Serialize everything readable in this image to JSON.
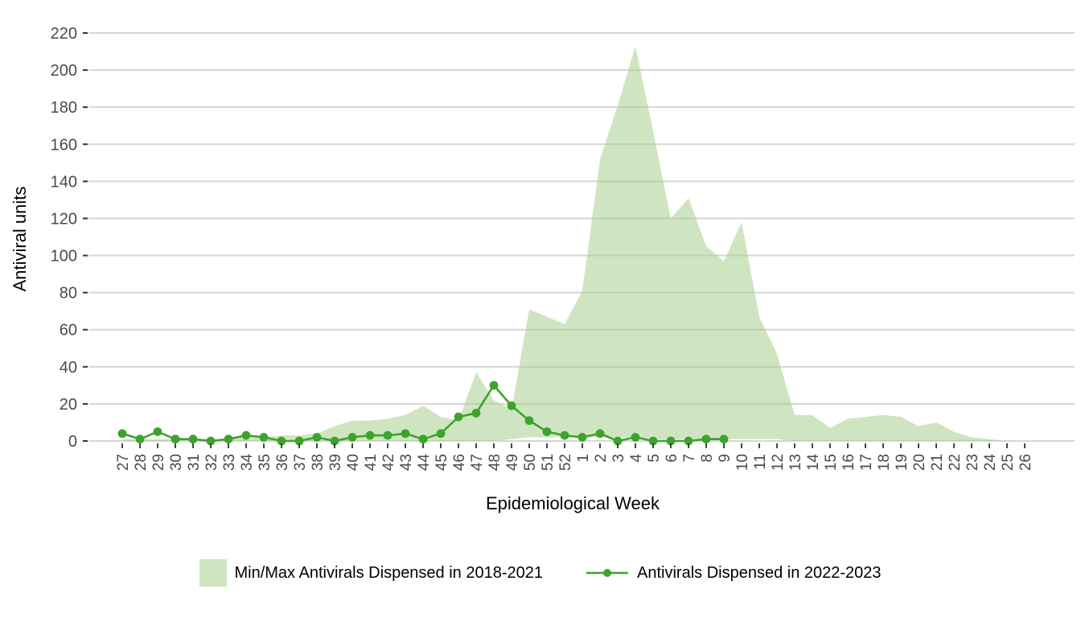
{
  "figure": {
    "y_axis_title": "Antiviral units",
    "x_axis_title": "Epidemiological Week"
  },
  "legend": {
    "items": [
      {
        "label": "Min/Max Antivirals Dispensed in 2018-2021",
        "type": "band-swatch"
      },
      {
        "label": "Antivirals Dispensed in 2022-2023",
        "type": "line-marker"
      }
    ]
  },
  "colors": {
    "band_fill_flat": "#cfe5c1",
    "band_fill_base": "#a8d08e",
    "band_fill_opacity": 0.55,
    "line_green": "#3ca42c",
    "grid": "#d6d6d6",
    "tick_mark": "#333333",
    "tick_label": "#4a4a4a"
  },
  "chart_data": {
    "type": "area",
    "title": "",
    "xlabel": "Epidemiological Week",
    "ylabel": "Antiviral units",
    "ylim": [
      0,
      220
    ],
    "y_ticks": [
      0,
      20,
      40,
      60,
      80,
      100,
      120,
      140,
      160,
      180,
      200,
      220
    ],
    "grid": "horizontal-only",
    "legend_position": "bottom",
    "categories": [
      "27",
      "28",
      "29",
      "30",
      "31",
      "32",
      "33",
      "34",
      "35",
      "36",
      "37",
      "38",
      "39",
      "40",
      "41",
      "42",
      "43",
      "44",
      "45",
      "46",
      "47",
      "48",
      "49",
      "50",
      "51",
      "52",
      "1",
      "2",
      "3",
      "4",
      "5",
      "6",
      "7",
      "8",
      "9",
      "10",
      "11",
      "12",
      "13",
      "14",
      "15",
      "16",
      "17",
      "18",
      "19",
      "20",
      "21",
      "22",
      "23",
      "24",
      "25",
      "26"
    ],
    "series": [
      {
        "name": "Min/Max Antivirals Dispensed in 2018-2021",
        "type": "band",
        "max": [
          1,
          1,
          1,
          1,
          1,
          1,
          1,
          2,
          2,
          3,
          3,
          4,
          8,
          11,
          11,
          12,
          14,
          19,
          13,
          11,
          37,
          22,
          17,
          71,
          67,
          63,
          81,
          152,
          181,
          213,
          167,
          120,
          131,
          105,
          97,
          118,
          67,
          47,
          14,
          14,
          7,
          12,
          13,
          14,
          13,
          8,
          10,
          5,
          2,
          1,
          0,
          0
        ],
        "min": [
          0,
          0,
          0,
          0,
          0,
          0,
          0,
          0,
          0,
          0,
          0,
          0,
          0,
          0,
          0,
          0,
          0,
          0,
          0,
          0,
          0,
          0,
          1,
          2,
          2,
          2,
          2,
          2,
          2,
          2,
          1,
          1,
          1,
          1,
          1,
          1,
          1,
          1,
          0,
          0,
          0,
          0,
          0,
          0,
          0,
          0,
          0,
          0,
          0,
          0,
          0,
          0
        ]
      },
      {
        "name": "Antivirals Dispensed in 2022-2023",
        "type": "line-marker",
        "values": [
          4,
          1,
          5,
          1,
          1,
          0,
          1,
          3,
          2,
          0,
          0,
          2,
          0,
          2,
          3,
          3,
          4,
          1,
          4,
          13,
          15,
          30,
          19,
          11,
          5,
          3,
          2,
          4,
          0,
          2,
          0,
          0,
          0,
          1,
          1,
          null,
          null,
          null,
          null,
          null,
          null,
          null,
          null,
          null,
          null,
          null,
          null,
          null,
          null,
          null,
          null,
          null
        ]
      }
    ]
  }
}
